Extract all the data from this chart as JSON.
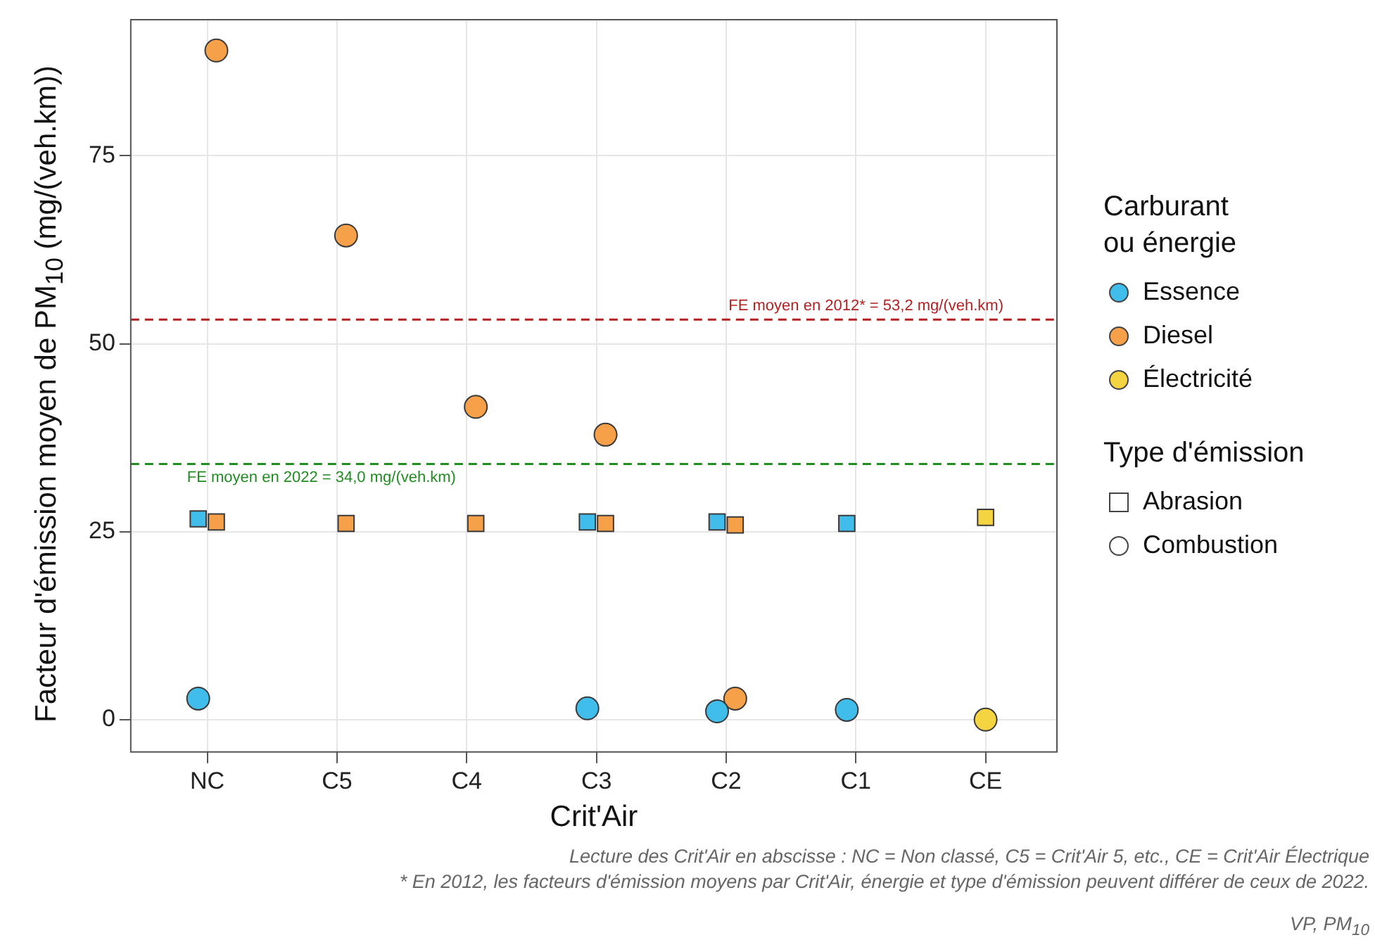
{
  "chart_data": {
    "type": "scatter",
    "xlabel": "Crit'Air",
    "ylabel": "Facteur d'émission moyen de PM$_{10}$ (mg/(veh.km))",
    "legend_title": "Carburant ou énergie",
    "categories": [
      "NC",
      "C5",
      "C4",
      "C3",
      "C2",
      "C1",
      "CE"
    ],
    "series": [
      {
        "color": "#40bdea",
        "marker": "square",
        "values": [
          26.7,
          null,
          null,
          26.3,
          26.3,
          26.1,
          null
        ]
      },
      {
        "color": "#f7a04a",
        "marker": "square",
        "values": [
          26.3,
          26.1,
          26.1,
          26.1,
          25.9,
          null,
          null
        ]
      },
      {
        "color": "#f5d442",
        "marker": "square",
        "values": [
          null,
          null,
          null,
          null,
          null,
          null,
          26.9
        ]
      },
      {
        "name": "Essence",
        "color": "#40bdea",
        "marker": "circle",
        "values": [
          2.8,
          null,
          null,
          1.5,
          1.1,
          1.3,
          null
        ]
      },
      {
        "name": "Diesel",
        "color": "#f7a04a",
        "marker": "circle",
        "values": [
          89.0,
          64.4,
          41.6,
          37.9,
          2.8,
          null,
          null
        ]
      },
      {
        "name": "Électricité",
        "color": "#f5d442",
        "marker": "circle",
        "values": [
          null,
          null,
          null,
          null,
          null,
          null,
          0
        ]
      }
    ],
    "ylim": [
      -4.3,
      93.1
    ],
    "yticks": [
      0,
      25,
      50,
      75
    ],
    "grid": true,
    "legend": "right",
    "ref_lines": [
      {
        "axis": "y",
        "value": 53.2,
        "label": "FE moyen en 2012* = 53,2 mg/(veh.km)",
        "color": "#b22222",
        "line_style": "dashed"
      },
      {
        "axis": "y",
        "value": 34.0,
        "label": "FE moyen en 2022 = 34,0 mg/(veh.km)",
        "color": "#228b22",
        "line_style": "dashed"
      }
    ],
    "annotations": [
      "Type d'émission",
      "Abrasion",
      "Combustion",
      "Lecture des Crit'Air en abscisse : NC = Non classé, C5 = Crit'Air 5, etc., CE = Crit'Air Électrique",
      "* En 2012, les facteurs d'émission moyens par Crit'Air, énergie et type d'émission peuvent différer de ceux de 2022.",
      "VP, PM$_{10}$"
    ]
  }
}
